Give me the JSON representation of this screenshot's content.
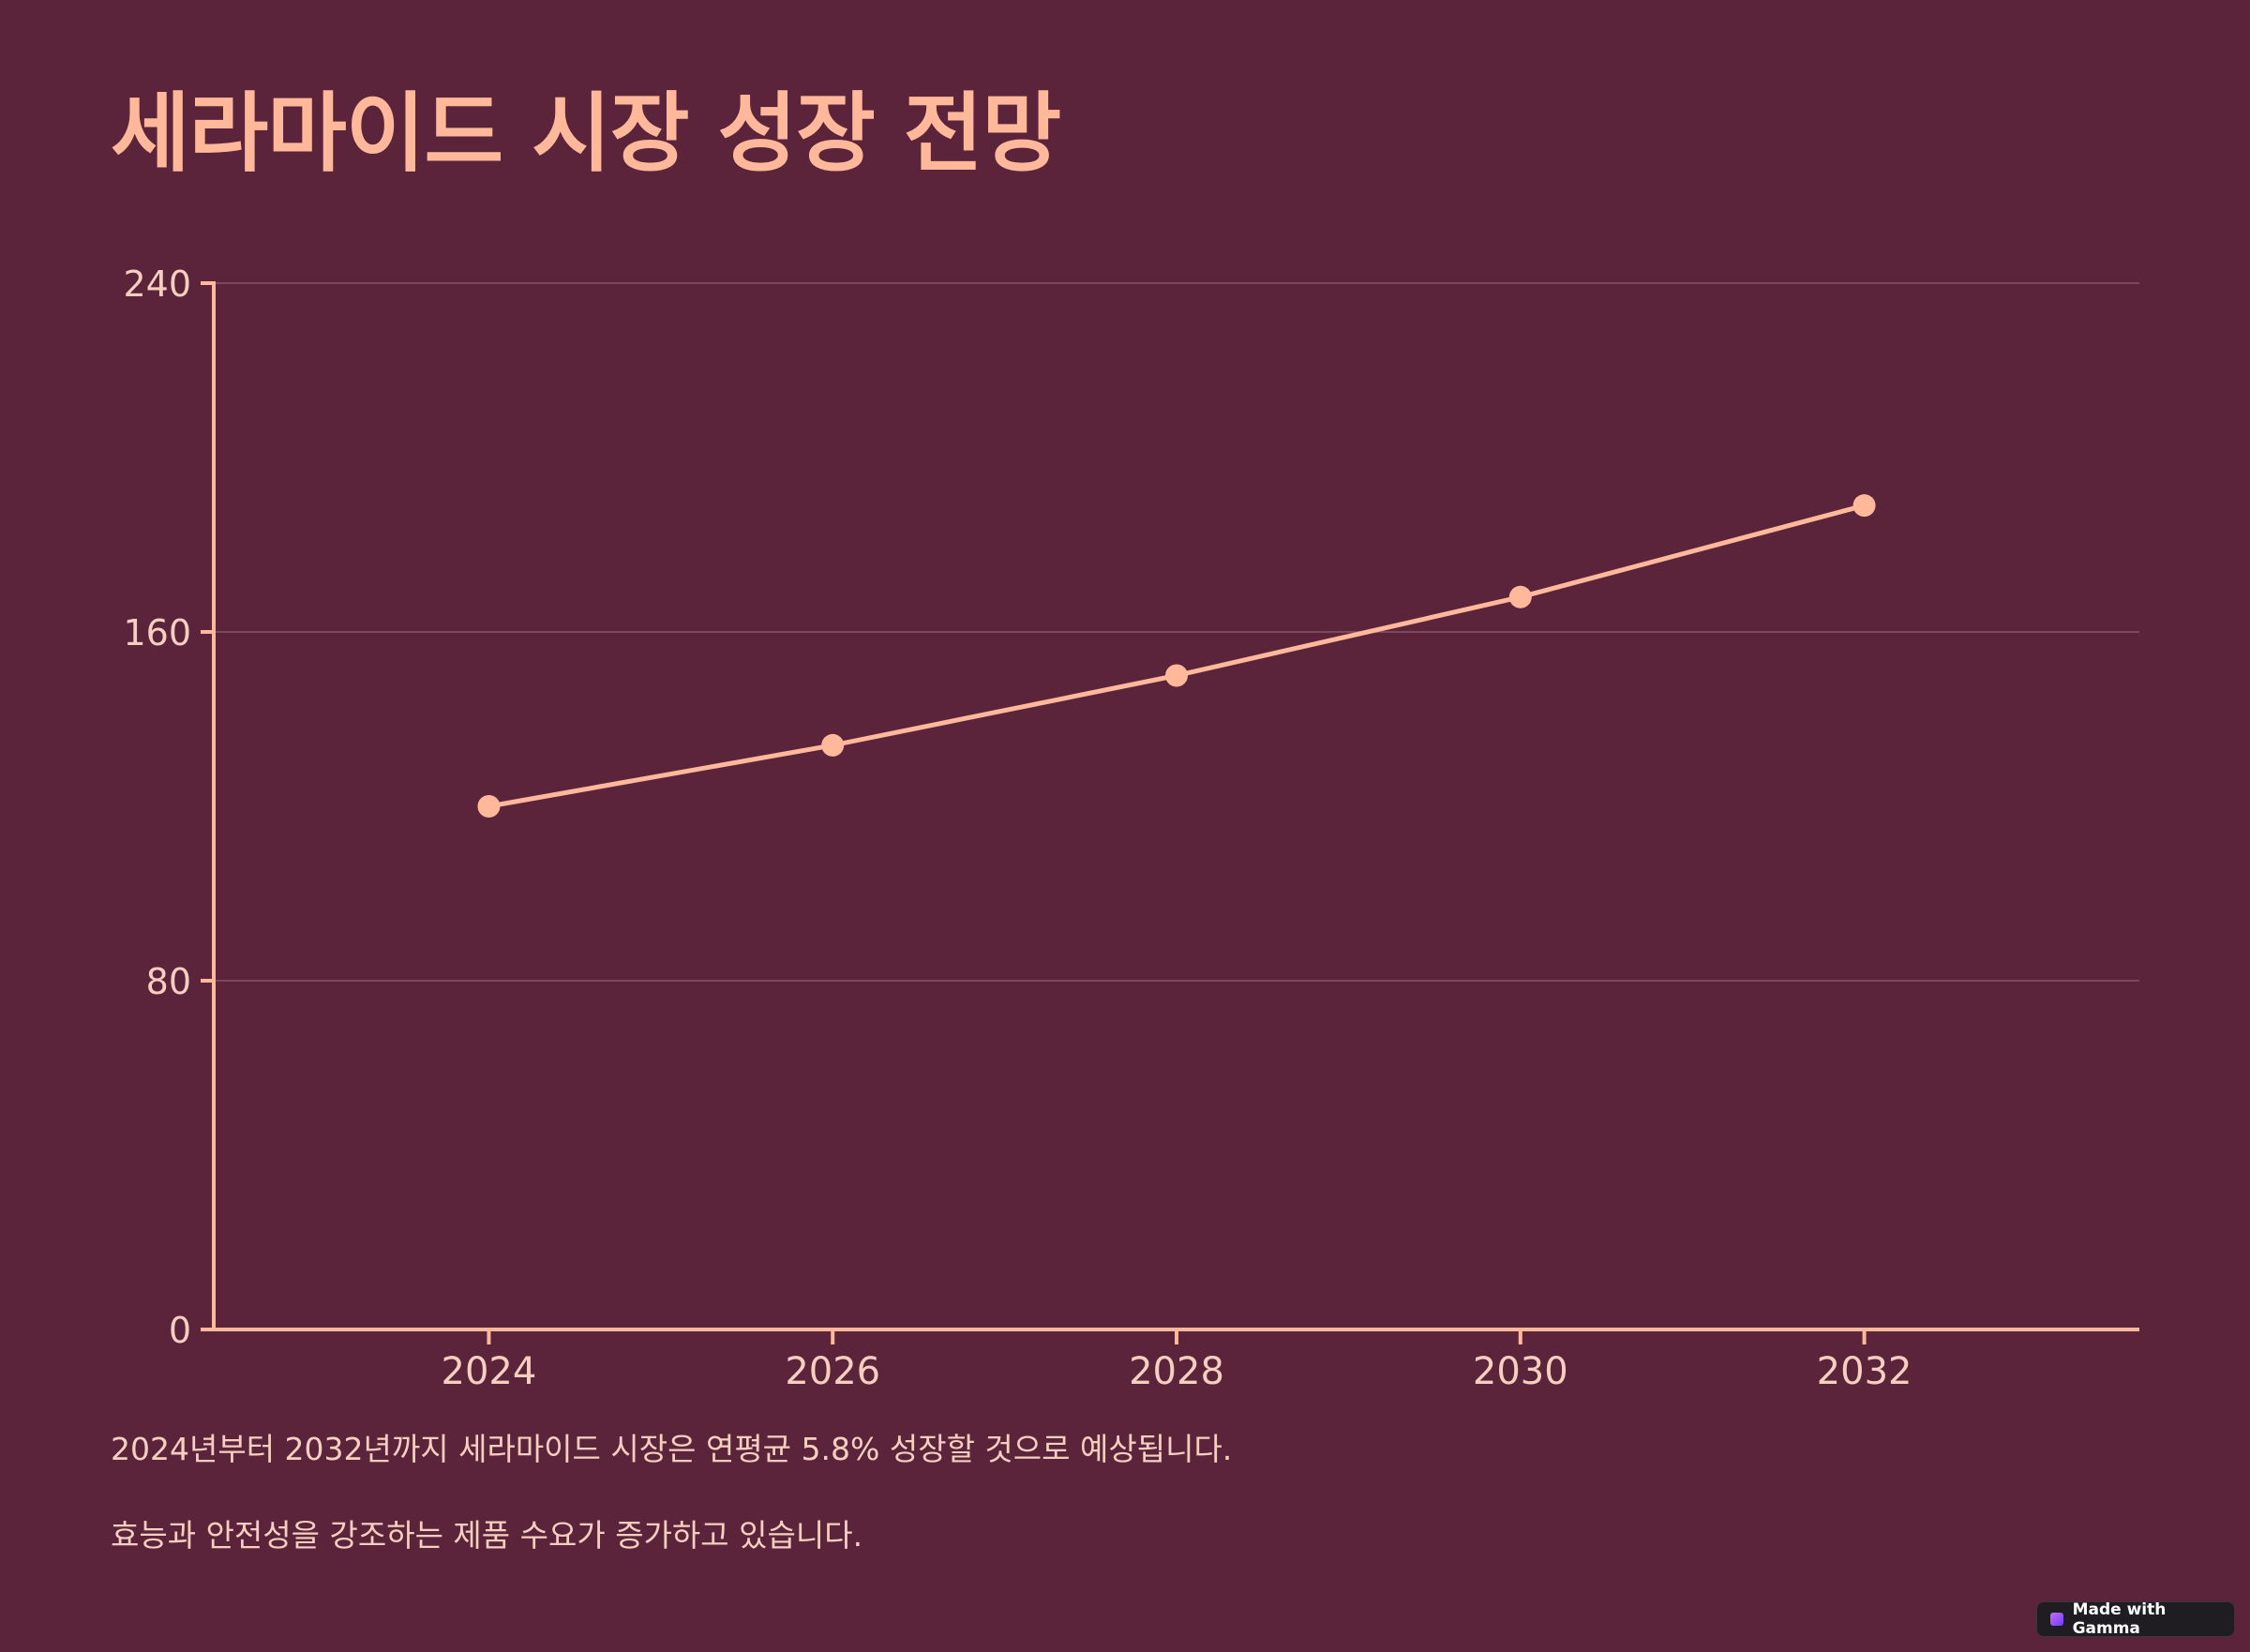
{
  "page": {
    "title": "세라마이드 시장 성장 전망",
    "description": [
      "2024년부터 2032년까지 세라마이드 시장은 연평균 5.8% 성장할 것으로 예상됩니다.",
      "효능과 안전성을 강조하는 제품 수요가 증가하고 있습니다."
    ],
    "badge_label": "Made with Gamma",
    "badge_icon": "gamma-logo-icon"
  },
  "colors": {
    "background": "#5b243a",
    "accent": "#ffb89a",
    "text": "#f6cfc0",
    "grid": "#7a4a5c"
  },
  "chart_data": {
    "type": "line",
    "title": "",
    "xlabel": "",
    "ylabel": "",
    "x": [
      2024,
      2026,
      2028,
      2030,
      2032
    ],
    "series": [
      {
        "name": "",
        "values": [
          120,
          134,
          150,
          168,
          189
        ]
      }
    ],
    "xlim": [
      2022.4,
      2033.6
    ],
    "ylim": [
      0,
      240
    ],
    "yticks": [
      0,
      80,
      160,
      240
    ],
    "xticks": [
      2024,
      2026,
      2028,
      2030,
      2032
    ],
    "grid": true,
    "legend": "none"
  }
}
